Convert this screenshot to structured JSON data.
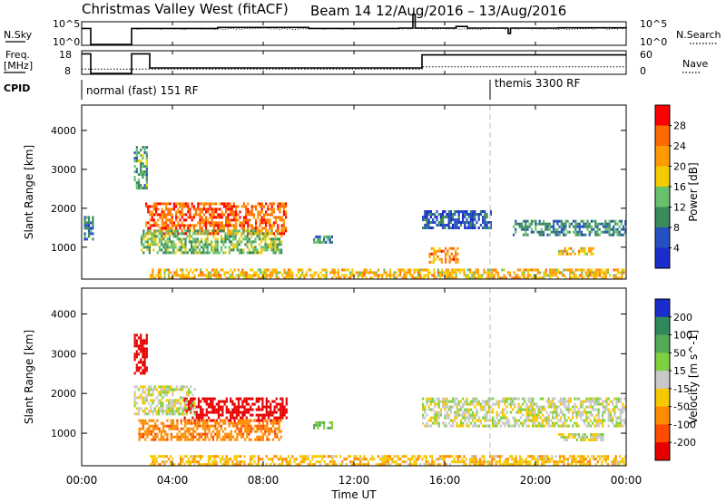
{
  "title_left": "Christmas Valley West (fitACF)",
  "title_right": "Beam 14  12/Aug/2016 – 13/Aug/2016",
  "nsky": {
    "label": "N.Sky",
    "tick_top": "10^5",
    "tick_bottom": "10^0",
    "right_label": "N.Search",
    "right_tick_top": "10^5",
    "right_tick_bottom": "10^0"
  },
  "freq": {
    "label_line1": "Freq.",
    "label_line2": "[MHz]",
    "tick_top": "18",
    "tick_bottom": "8",
    "right_label": "Nave",
    "right_tick_top": "60",
    "right_tick_bottom": "0"
  },
  "cpid": {
    "label": "CPID",
    "segments": [
      {
        "start_hour": 0.0,
        "text": "normal (fast) 151 RF"
      },
      {
        "start_hour": 18.0,
        "text": "themis 3300 RF"
      }
    ]
  },
  "x_axis": {
    "label": "Time UT",
    "range_hours": [
      0,
      24
    ],
    "ticks": [
      {
        "hour": 0,
        "label": "00:00"
      },
      {
        "hour": 4,
        "label": "04:00"
      },
      {
        "hour": 8,
        "label": "08:00"
      },
      {
        "hour": 12,
        "label": "12:00"
      },
      {
        "hour": 16,
        "label": "16:00"
      },
      {
        "hour": 20,
        "label": "20:00"
      },
      {
        "hour": 24,
        "label": "00:00"
      }
    ]
  },
  "power_colorbar": {
    "label": "Power [dB]",
    "levels": [
      {
        "value": "28",
        "color": "#ff0000"
      },
      {
        "value": "24",
        "color": "#ff6a00"
      },
      {
        "value": "20",
        "color": "#ff9a00"
      },
      {
        "value": "16",
        "color": "#f2cc00"
      },
      {
        "value": "12",
        "color": "#66c16a"
      },
      {
        "value": "8",
        "color": "#3a8a5a"
      },
      {
        "value": "4",
        "color": "#2550c0"
      },
      {
        "value": "",
        "color": "#1a2ccc"
      }
    ]
  },
  "velocity_colorbar": {
    "label": "Velocity [m s^-1]",
    "levels": [
      {
        "value": "200",
        "color": "#1a2ccc"
      },
      {
        "value": "100",
        "color": "#2e8a5a"
      },
      {
        "value": "50",
        "color": "#55aa55"
      },
      {
        "value": "15",
        "color": "#7ed040"
      },
      {
        "value": "-15",
        "color": "#c8c8c8"
      },
      {
        "value": "-50",
        "color": "#f6c800"
      },
      {
        "value": "-100",
        "color": "#ff8c00"
      },
      {
        "value": "-200",
        "color": "#ff4a00"
      },
      {
        "value": "",
        "color": "#e60000"
      }
    ]
  },
  "chart_data": [
    {
      "type": "line",
      "panel": "nsky",
      "x_unit": "hour UT",
      "ylim": [
        "10^0",
        "10^5"
      ],
      "x": [
        0,
        0.3,
        0.4,
        2.1,
        2.2,
        6,
        10,
        14,
        14.6,
        14.7,
        16.5,
        17,
        18.8,
        18.9,
        21,
        24
      ],
      "level": [
        0.8,
        0.8,
        0,
        0,
        0.8,
        0.85,
        0.8,
        0.82,
        1.5,
        0.82,
        0.9,
        0.82,
        0.55,
        0.82,
        0.83,
        0.85
      ],
      "level_unit": "fraction of axis height"
    },
    {
      "type": "line",
      "panel": "frequency",
      "x_unit": "hour UT",
      "ylabel": "Freq. [MHz]",
      "ylim": [
        8,
        18
      ],
      "x": [
        0,
        0.4,
        2.2,
        3.0,
        15.0,
        18.9,
        24
      ],
      "freq_mhz": [
        17,
        8,
        17,
        10.5,
        16.5,
        16.5,
        16.5
      ],
      "nave_ylim": [
        0,
        60
      ],
      "nave": [
        12,
        12,
        12,
        12,
        18,
        18,
        18
      ]
    },
    {
      "type": "heatmap",
      "panel": "power",
      "xlabel": "Time UT",
      "ylabel": "Slant Range [km]",
      "xlim_hours": [
        0,
        24
      ],
      "ylim_km": [
        180,
        4650
      ],
      "yticks_km": [
        1000,
        2000,
        3000,
        4000
      ],
      "colorbar_label": "Power [dB]",
      "colorbar_levels_db": [
        4,
        8,
        12,
        16,
        20,
        24,
        28
      ],
      "regions": [
        {
          "t": [
            2.8,
            9.0
          ],
          "r": [
            1350,
            2150
          ],
          "power_db": 26
        },
        {
          "t": [
            2.6,
            8.8
          ],
          "r": [
            850,
            1450
          ],
          "power_db": 14
        },
        {
          "t": [
            2.3,
            2.9
          ],
          "r": [
            2500,
            3600
          ],
          "power_db": 12
        },
        {
          "t": [
            0.1,
            0.5
          ],
          "r": [
            1200,
            1800
          ],
          "power_db": 8
        },
        {
          "t": [
            3.0,
            24.0
          ],
          "r": [
            180,
            450
          ],
          "power_db": 20
        },
        {
          "t": [
            10.2,
            11.0
          ],
          "r": [
            1150,
            1300
          ],
          "power_db": 10
        },
        {
          "t": [
            15.0,
            18.0
          ],
          "r": [
            1500,
            1950
          ],
          "power_db": 6
        },
        {
          "t": [
            15.3,
            16.6
          ],
          "r": [
            600,
            1000
          ],
          "power_db": 24
        },
        {
          "t": [
            19.0,
            24.0
          ],
          "r": [
            1300,
            1700
          ],
          "power_db": 10
        },
        {
          "t": [
            21.0,
            22.5
          ],
          "r": [
            800,
            1000
          ],
          "power_db": 20
        }
      ]
    },
    {
      "type": "heatmap",
      "panel": "velocity",
      "xlabel": "Time UT",
      "ylabel": "Slant Range [km]",
      "xlim_hours": [
        0,
        24
      ],
      "ylim_km": [
        180,
        4650
      ],
      "yticks_km": [
        1000,
        2000,
        3000,
        4000
      ],
      "colorbar_label": "Velocity [m s^-1]",
      "colorbar_levels_ms": [
        200,
        100,
        50,
        15,
        -15,
        -50,
        -100,
        -200
      ],
      "regions": [
        {
          "t": [
            4.5,
            9.0
          ],
          "r": [
            1300,
            1900
          ],
          "velocity_ms": -250
        },
        {
          "t": [
            2.5,
            8.8
          ],
          "r": [
            850,
            1350
          ],
          "velocity_ms": -80
        },
        {
          "t": [
            2.3,
            5.0
          ],
          "r": [
            1500,
            2200
          ],
          "velocity_ms": 0
        },
        {
          "t": [
            2.3,
            2.9
          ],
          "r": [
            2500,
            3500
          ],
          "velocity_ms": -250
        },
        {
          "t": [
            3.0,
            24.0
          ],
          "r": [
            180,
            450
          ],
          "velocity_ms": -40
        },
        {
          "t": [
            10.2,
            11.0
          ],
          "r": [
            1150,
            1300
          ],
          "velocity_ms": 50
        },
        {
          "t": [
            15.0,
            24.0
          ],
          "r": [
            1200,
            1900
          ],
          "velocity_ms": 0
        },
        {
          "t": [
            21.0,
            23.0
          ],
          "r": [
            800,
            1000
          ],
          "velocity_ms": 0
        }
      ]
    }
  ]
}
